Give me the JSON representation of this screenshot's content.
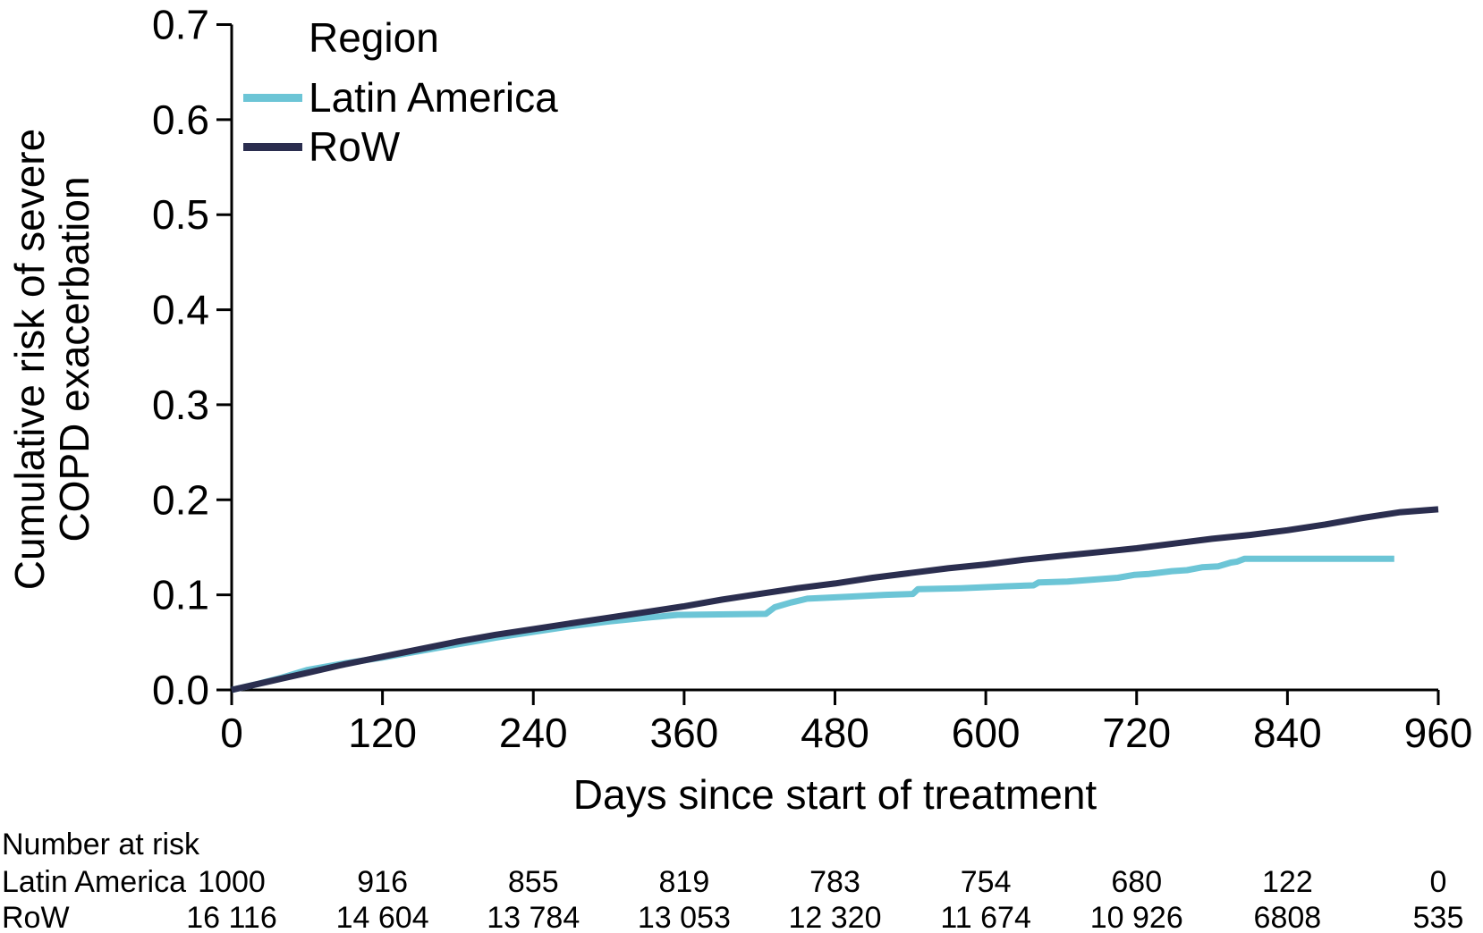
{
  "chart_data": {
    "type": "line",
    "subtype": "kaplan-meier-cumulative-incidence",
    "xlabel": "Days since start of treatment",
    "ylabel": "Cumulative risk of severe COPD exacerbation",
    "xlim": [
      0,
      960
    ],
    "ylim": [
      0,
      0.7
    ],
    "xticks": [
      0,
      120,
      240,
      360,
      480,
      600,
      720,
      840,
      960
    ],
    "ytick_labels": [
      "0.0",
      "0.1",
      "0.2",
      "0.3",
      "0.4",
      "0.5",
      "0.6",
      "0.7"
    ],
    "grid": false,
    "axis_color": "#000000",
    "legend": {
      "title": "Region",
      "position": "top-left"
    },
    "series": [
      {
        "name": "Latin America",
        "color": "#6cc5d6",
        "points": [
          [
            0,
            0
          ],
          [
            20,
            0.006
          ],
          [
            40,
            0.013
          ],
          [
            60,
            0.021
          ],
          [
            90,
            0.028
          ],
          [
            120,
            0.034
          ],
          [
            150,
            0.041
          ],
          [
            180,
            0.048
          ],
          [
            210,
            0.055
          ],
          [
            240,
            0.061
          ],
          [
            270,
            0.067
          ],
          [
            300,
            0.072
          ],
          [
            330,
            0.076
          ],
          [
            355,
            0.079
          ],
          [
            425,
            0.08
          ],
          [
            432,
            0.087
          ],
          [
            445,
            0.092
          ],
          [
            458,
            0.096
          ],
          [
            490,
            0.098
          ],
          [
            520,
            0.1
          ],
          [
            542,
            0.101
          ],
          [
            546,
            0.106
          ],
          [
            580,
            0.107
          ],
          [
            615,
            0.109
          ],
          [
            638,
            0.11
          ],
          [
            642,
            0.113
          ],
          [
            665,
            0.114
          ],
          [
            685,
            0.116
          ],
          [
            705,
            0.118
          ],
          [
            718,
            0.121
          ],
          [
            730,
            0.122
          ],
          [
            748,
            0.125
          ],
          [
            760,
            0.126
          ],
          [
            772,
            0.129
          ],
          [
            785,
            0.13
          ],
          [
            795,
            0.134
          ],
          [
            800,
            0.135
          ],
          [
            806,
            0.138
          ],
          [
            925,
            0.138
          ]
        ]
      },
      {
        "name": "RoW",
        "color": "#2b2e4f",
        "points": [
          [
            0,
            0
          ],
          [
            30,
            0.009
          ],
          [
            60,
            0.018
          ],
          [
            90,
            0.027
          ],
          [
            120,
            0.035
          ],
          [
            150,
            0.043
          ],
          [
            180,
            0.051
          ],
          [
            210,
            0.058
          ],
          [
            240,
            0.064
          ],
          [
            270,
            0.07
          ],
          [
            300,
            0.076
          ],
          [
            330,
            0.082
          ],
          [
            360,
            0.088
          ],
          [
            390,
            0.095
          ],
          [
            420,
            0.101
          ],
          [
            450,
            0.107
          ],
          [
            480,
            0.112
          ],
          [
            510,
            0.118
          ],
          [
            540,
            0.123
          ],
          [
            570,
            0.128
          ],
          [
            600,
            0.132
          ],
          [
            630,
            0.137
          ],
          [
            660,
            0.141
          ],
          [
            690,
            0.145
          ],
          [
            720,
            0.149
          ],
          [
            750,
            0.154
          ],
          [
            780,
            0.159
          ],
          [
            810,
            0.163
          ],
          [
            840,
            0.168
          ],
          [
            870,
            0.174
          ],
          [
            900,
            0.181
          ],
          [
            930,
            0.187
          ],
          [
            960,
            0.19
          ]
        ]
      }
    ],
    "risk_table": {
      "title": "Number at risk",
      "x": [
        0,
        120,
        240,
        360,
        480,
        600,
        720,
        840,
        960
      ],
      "rows": [
        {
          "label": "Latin America",
          "values": [
            "1000",
            "916",
            "855",
            "819",
            "783",
            "754",
            "680",
            "122",
            "0"
          ]
        },
        {
          "label": "RoW",
          "values": [
            "16 116",
            "14 604",
            "13 784",
            "13 053",
            "12 320",
            "11 674",
            "10 926",
            "6808",
            "535"
          ]
        }
      ]
    }
  }
}
